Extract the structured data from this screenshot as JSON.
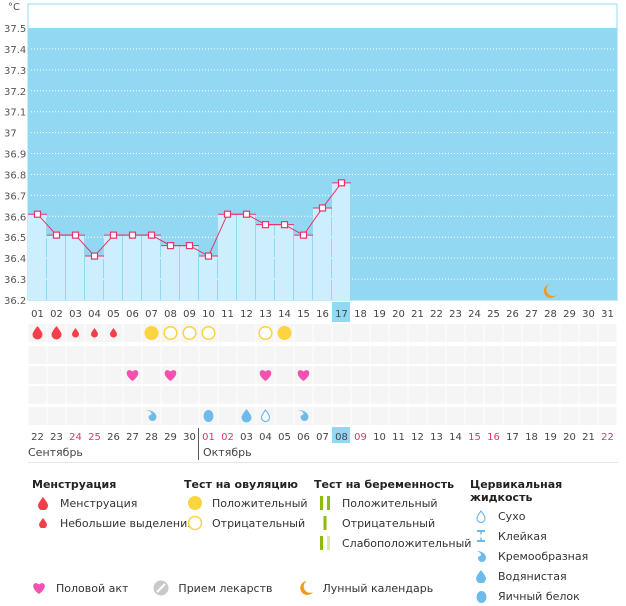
{
  "chart_data": {
    "type": "line",
    "title": "",
    "unit_label": "°C",
    "ylim": [
      36.2,
      37.6
    ],
    "yticks": [
      "37.5",
      "37.4",
      "37.3",
      "37.2",
      "37.1",
      "37",
      "36.9",
      "36.8",
      "36.7",
      "36.6",
      "36.5",
      "36.4",
      "36.3",
      "36.2"
    ],
    "ytick_values": [
      37.5,
      37.4,
      37.3,
      37.2,
      37.1,
      37.0,
      36.9,
      36.8,
      36.7,
      36.6,
      36.5,
      36.4,
      36.3,
      36.2
    ],
    "cycle_days": [
      "01",
      "02",
      "03",
      "04",
      "05",
      "06",
      "07",
      "08",
      "09",
      "10",
      "11",
      "12",
      "13",
      "14",
      "15",
      "16",
      "17",
      "18",
      "19",
      "20",
      "21",
      "22",
      "23",
      "24",
      "25",
      "26",
      "27",
      "28",
      "29",
      "30",
      "31"
    ],
    "current_cycle_day": "17",
    "temperatures": [
      36.61,
      36.51,
      36.51,
      36.41,
      36.51,
      36.51,
      36.51,
      36.46,
      36.46,
      36.41,
      36.61,
      36.61,
      36.56,
      36.56,
      36.51,
      36.64,
      36.76
    ],
    "moon_day": "28",
    "grid": true,
    "colors": {
      "background": "#92d8f3",
      "bar": "#cdeefc",
      "line": "#e8336b",
      "moon": "#f39a1e"
    }
  },
  "calendar": {
    "dates": [
      "22",
      "23",
      "24",
      "25",
      "26",
      "27",
      "28",
      "29",
      "30",
      "01",
      "02",
      "03",
      "04",
      "05",
      "06",
      "07",
      "08",
      "09",
      "10",
      "11",
      "12",
      "13",
      "14",
      "15",
      "16",
      "17",
      "18",
      "19",
      "20",
      "21",
      "22"
    ],
    "weekend_indices": [
      2,
      3,
      9,
      10,
      17,
      23,
      24,
      30
    ],
    "today_index": 16,
    "months": [
      {
        "label": "Сентябрь",
        "start": 0
      },
      {
        "label": "Октябрь",
        "start": 9
      }
    ]
  },
  "markers": {
    "menstruation": [
      {
        "day": 0,
        "type": "heavy"
      },
      {
        "day": 1,
        "type": "heavy"
      },
      {
        "day": 2,
        "type": "light"
      },
      {
        "day": 3,
        "type": "light"
      },
      {
        "day": 4,
        "type": "light"
      }
    ],
    "ovulation": [
      {
        "day": 6,
        "type": "positive"
      },
      {
        "day": 7,
        "type": "negative"
      },
      {
        "day": 8,
        "type": "negative"
      },
      {
        "day": 9,
        "type": "negative"
      },
      {
        "day": 12,
        "type": "negative"
      },
      {
        "day": 13,
        "type": "positive"
      }
    ],
    "intercourse": [
      5,
      7,
      12,
      14
    ],
    "cervical": [
      {
        "day": 6,
        "type": "creamy"
      },
      {
        "day": 9,
        "type": "eggwhite"
      },
      {
        "day": 11,
        "type": "watery"
      },
      {
        "day": 12,
        "type": "dry"
      },
      {
        "day": 14,
        "type": "creamy"
      }
    ]
  },
  "legend": {
    "menstruation": {
      "title": "Менструация",
      "items": [
        "Менструация",
        "Небольшие выделения"
      ]
    },
    "ovulation": {
      "title": "Тест на овуляцию",
      "items": [
        "Положительный",
        "Отрицательный"
      ]
    },
    "pregnancy": {
      "title": "Тест на беременность",
      "items": [
        "Положительный",
        "Отрицательный",
        "Слабоположительный"
      ]
    },
    "cervical": {
      "title": "Цервикальная жидкость",
      "items": [
        "Сухо",
        "Клейкая",
        "Кремообразная",
        "Водянистая",
        "Яичный белок"
      ]
    },
    "other": [
      "Половой акт",
      "Прием лекарств",
      "Лунный календарь"
    ]
  }
}
